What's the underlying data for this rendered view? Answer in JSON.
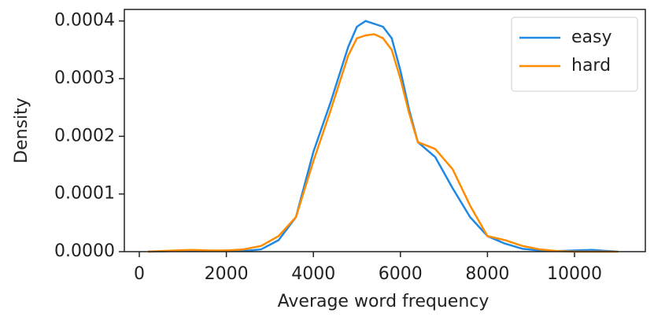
{
  "chart_data": {
    "type": "line",
    "xlabel": "Average word frequency",
    "ylabel": "Density",
    "x": [
      200,
      800,
      1200,
      1600,
      2000,
      2400,
      2800,
      3200,
      3600,
      4000,
      4400,
      4800,
      5000,
      5200,
      5400,
      5600,
      5800,
      6000,
      6200,
      6400,
      6800,
      7200,
      7600,
      8000,
      8400,
      8800,
      9200,
      9600,
      10000,
      10400,
      11000
    ],
    "series": [
      {
        "name": "easy",
        "color": "#1e88e5",
        "values": [
          0,
          1e-06,
          1e-06,
          1e-06,
          2e-06,
          1e-06,
          4e-06,
          2e-05,
          6e-05,
          0.000173,
          0.00026,
          0.000355,
          0.00039,
          0.0004,
          0.000395,
          0.00039,
          0.00037,
          0.000314,
          0.000246,
          0.00019,
          0.000164,
          0.00011,
          6e-05,
          2.7e-05,
          1.4e-05,
          5e-06,
          2e-06,
          1e-06,
          2e-06,
          3e-06,
          0
        ]
      },
      {
        "name": "hard",
        "color": "#ff8c00",
        "values": [
          0,
          2e-06,
          3e-06,
          2e-06,
          2e-06,
          4e-06,
          1e-05,
          2.7e-05,
          6e-05,
          0.000157,
          0.000246,
          0.00034,
          0.00037,
          0.000375,
          0.000377,
          0.00037,
          0.00035,
          0.0003,
          0.00024,
          0.00019,
          0.000178,
          0.000143,
          8e-05,
          2.7e-05,
          2e-05,
          1e-05,
          4e-06,
          1e-06,
          0,
          0,
          0
        ]
      }
    ],
    "xlim": [
      -344,
      11628
    ],
    "ylim": [
      0,
      0.00042
    ],
    "xticks": [
      0,
      2000,
      4000,
      6000,
      8000,
      10000
    ],
    "yticks": [
      {
        "value": 0,
        "label": "0.0000"
      },
      {
        "value": 0.0001,
        "label": "0.0001"
      },
      {
        "value": 0.0002,
        "label": "0.0002"
      },
      {
        "value": 0.0003,
        "label": "0.0003"
      },
      {
        "value": 0.0004,
        "label": "0.0004"
      }
    ],
    "legend": "upper right",
    "grid": false
  }
}
